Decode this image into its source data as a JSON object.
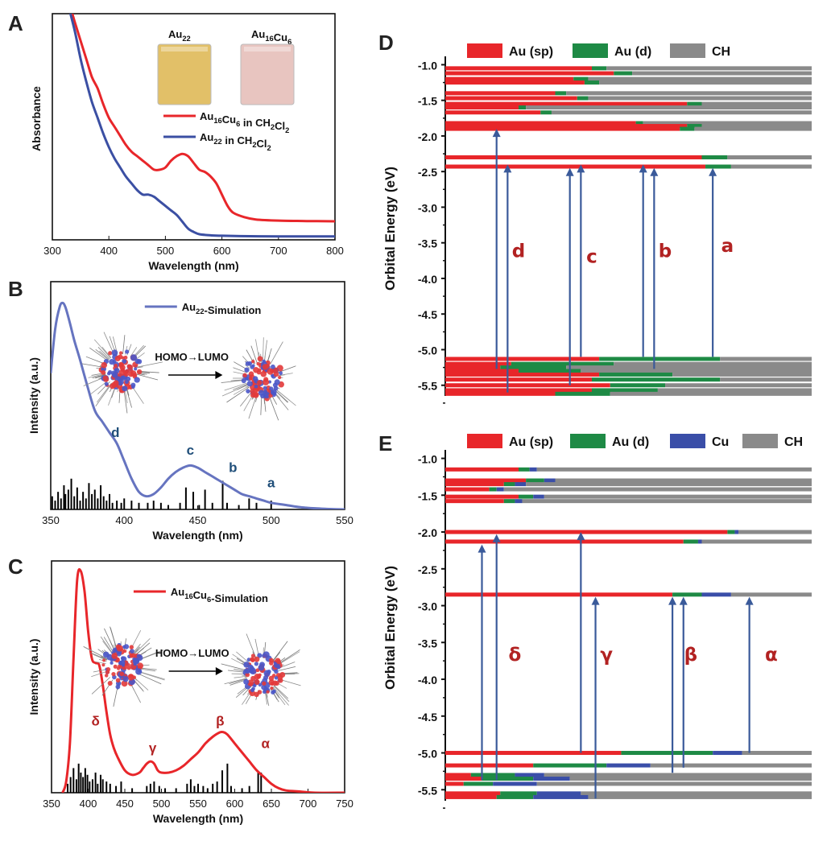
{
  "colors": {
    "red": "#e8262a",
    "blue": "#3b4fa3",
    "sim_blue": "#6674c0",
    "green": "#1e8a45",
    "gray": "#8a8a8a",
    "cu_blue": "#3a4ea8",
    "arrow": "#3a5a9a",
    "label_dark": "#1f4e79",
    "label_red": "#b22222"
  },
  "chart_data": [
    {
      "id": "A",
      "type": "line",
      "panel_label": "A",
      "xlabel": "Wavelength (nm)",
      "ylabel": "Absorbance",
      "xlim": [
        300,
        800
      ],
      "ylim": [
        0,
        1
      ],
      "xticks": [
        300,
        400,
        500,
        600,
        700,
        800
      ],
      "series": [
        {
          "name": "Au16Cu6 in CH2Cl2",
          "legend_main": "Au",
          "legend_sub1": "16",
          "legend_mid": "Cu",
          "legend_sub2": "6",
          "legend_end": " in CH",
          "legend_sub3": "2",
          "legend_tail": "Cl",
          "legend_sub4": "2",
          "color": "#e8262a",
          "x": [
            333,
            340,
            350,
            360,
            370,
            380,
            390,
            400,
            410,
            420,
            430,
            440,
            450,
            460,
            470,
            480,
            490,
            500,
            510,
            520,
            530,
            540,
            550,
            560,
            570,
            580,
            590,
            600,
            610,
            620,
            640,
            660,
            700,
            750,
            800
          ],
          "y": [
            1.02,
            0.96,
            0.88,
            0.8,
            0.72,
            0.67,
            0.6,
            0.54,
            0.5,
            0.46,
            0.42,
            0.39,
            0.37,
            0.35,
            0.33,
            0.31,
            0.31,
            0.32,
            0.35,
            0.37,
            0.38,
            0.37,
            0.34,
            0.31,
            0.3,
            0.28,
            0.25,
            0.2,
            0.15,
            0.12,
            0.1,
            0.09,
            0.085,
            0.083,
            0.082
          ]
        },
        {
          "name": "Au22 in CH2Cl2",
          "legend_main": "Au",
          "legend_sub1": "22",
          "legend_end": " in CH",
          "legend_sub3": "2",
          "legend_tail": "Cl",
          "legend_sub4": "2",
          "color": "#3b4fa3",
          "x": [
            330,
            340,
            350,
            360,
            370,
            380,
            390,
            400,
            410,
            420,
            430,
            440,
            450,
            460,
            470,
            480,
            490,
            500,
            510,
            520,
            530,
            540,
            550,
            560,
            580,
            600,
            650,
            700,
            800
          ],
          "y": [
            1.02,
            0.92,
            0.8,
            0.7,
            0.61,
            0.54,
            0.47,
            0.41,
            0.36,
            0.32,
            0.28,
            0.25,
            0.22,
            0.2,
            0.2,
            0.19,
            0.17,
            0.15,
            0.13,
            0.11,
            0.08,
            0.05,
            0.035,
            0.025,
            0.02,
            0.018,
            0.016,
            0.015,
            0.015
          ]
        }
      ],
      "photos": [
        {
          "label_main": "Au",
          "label_sub": "22",
          "color": "#e2c068"
        },
        {
          "label_main": "Au",
          "label_sub": "16",
          "label_mid": "Cu",
          "label_sub2": "6",
          "color": "#e8c5c0"
        }
      ]
    },
    {
      "id": "B",
      "type": "line",
      "panel_label": "B",
      "xlabel": "Wavelength (nm)",
      "ylabel": "Intensity (a.u.)",
      "xlim": [
        350,
        550
      ],
      "ylim": [
        0,
        1
      ],
      "xticks": [
        350,
        400,
        450,
        500,
        550
      ],
      "series": [
        {
          "name": "Au22-Simulation",
          "legend_main": "Au",
          "legend_sub1": "22",
          "legend_end": "-Simulation",
          "color": "#6674c0",
          "x": [
            350,
            353,
            356,
            358,
            360,
            363,
            366,
            370,
            375,
            380,
            385,
            390,
            395,
            400,
            405,
            410,
            415,
            420,
            425,
            430,
            435,
            440,
            445,
            450,
            455,
            460,
            465,
            470,
            475,
            480,
            485,
            490,
            495,
            500,
            510,
            520,
            530,
            540,
            550
          ],
          "y": [
            0.62,
            0.82,
            0.92,
            0.94,
            0.92,
            0.85,
            0.77,
            0.68,
            0.56,
            0.45,
            0.4,
            0.35,
            0.3,
            0.22,
            0.14,
            0.08,
            0.06,
            0.07,
            0.1,
            0.14,
            0.17,
            0.19,
            0.2,
            0.19,
            0.17,
            0.15,
            0.13,
            0.11,
            0.09,
            0.07,
            0.06,
            0.05,
            0.04,
            0.03,
            0.02,
            0.01,
            0.005,
            0.002,
            0.0
          ]
        }
      ],
      "sticks": {
        "x": [
          351,
          353,
          355,
          357,
          359,
          360,
          362,
          364,
          366,
          368,
          370,
          372,
          374,
          376,
          378,
          380,
          382,
          384,
          386,
          388,
          390,
          392,
          395,
          398,
          400,
          405,
          410,
          416,
          420,
          425,
          430,
          438,
          442,
          447,
          451,
          455,
          460,
          467,
          470,
          478,
          485,
          490,
          500
        ],
        "y": [
          0.06,
          0.04,
          0.08,
          0.05,
          0.11,
          0.07,
          0.09,
          0.14,
          0.06,
          0.1,
          0.04,
          0.08,
          0.05,
          0.12,
          0.07,
          0.09,
          0.05,
          0.11,
          0.06,
          0.04,
          0.07,
          0.03,
          0.04,
          0.03,
          0.05,
          0.04,
          0.03,
          0.03,
          0.04,
          0.03,
          0.02,
          0.03,
          0.1,
          0.08,
          0.02,
          0.09,
          0.03,
          0.13,
          0.03,
          0.02,
          0.05,
          0.03,
          0.04
        ]
      },
      "annotations": [
        {
          "text": "d",
          "x": 394,
          "y": 0.33
        },
        {
          "text": "c",
          "x": 445,
          "y": 0.25
        },
        {
          "text": "b",
          "x": 474,
          "y": 0.17
        },
        {
          "text": "a",
          "x": 500,
          "y": 0.1
        }
      ],
      "inset_text": "HOMO→LUMO"
    },
    {
      "id": "C",
      "type": "line",
      "panel_label": "C",
      "xlabel": "Wavelength (nm)",
      "ylabel": "Intensity (a.u.)",
      "xlim": [
        350,
        750
      ],
      "ylim": [
        0,
        1
      ],
      "xticks": [
        350,
        400,
        450,
        500,
        550,
        600,
        650,
        700,
        750
      ],
      "series": [
        {
          "name": "Au16Cu6-Simulation",
          "legend_main": "Au",
          "legend_sub1": "16",
          "legend_mid": "Cu",
          "legend_sub2": "6",
          "legend_end": "-Simulation",
          "color": "#e8262a",
          "x": [
            365,
            370,
            375,
            380,
            385,
            390,
            395,
            400,
            405,
            410,
            415,
            420,
            425,
            430,
            435,
            440,
            450,
            460,
            470,
            475,
            480,
            485,
            490,
            495,
            500,
            510,
            520,
            530,
            540,
            550,
            560,
            570,
            580,
            585,
            590,
            600,
            610,
            620,
            630,
            640,
            650,
            660,
            670,
            690,
            710,
            750
          ],
          "y": [
            0.0,
            0.05,
            0.22,
            0.6,
            0.95,
            0.99,
            0.9,
            0.72,
            0.6,
            0.58,
            0.57,
            0.48,
            0.36,
            0.26,
            0.2,
            0.16,
            0.1,
            0.08,
            0.09,
            0.11,
            0.13,
            0.14,
            0.13,
            0.1,
            0.09,
            0.09,
            0.1,
            0.12,
            0.15,
            0.18,
            0.22,
            0.25,
            0.27,
            0.27,
            0.26,
            0.22,
            0.18,
            0.14,
            0.1,
            0.07,
            0.04,
            0.02,
            0.01,
            0.005,
            0.0,
            0.0
          ]
        }
      ],
      "sticks": {
        "x": [
          372,
          376,
          380,
          384,
          387,
          390,
          393,
          396,
          399,
          402,
          406,
          410,
          413,
          417,
          420,
          425,
          430,
          438,
          445,
          460,
          480,
          485,
          490,
          497,
          505,
          520,
          535,
          540,
          545,
          550,
          557,
          563,
          570,
          576,
          583,
          590,
          595,
          610,
          620,
          632,
          636
        ],
        "y": [
          0.04,
          0.07,
          0.11,
          0.06,
          0.13,
          0.09,
          0.07,
          0.11,
          0.08,
          0.05,
          0.06,
          0.09,
          0.04,
          0.08,
          0.06,
          0.05,
          0.04,
          0.03,
          0.05,
          0.02,
          0.03,
          0.04,
          0.05,
          0.03,
          0.02,
          0.02,
          0.04,
          0.06,
          0.03,
          0.04,
          0.03,
          0.02,
          0.04,
          0.05,
          0.1,
          0.13,
          0.03,
          0.02,
          0.03,
          0.09,
          0.09
        ]
      },
      "annotations": [
        {
          "text": "δ",
          "x": 410,
          "y": 0.3
        },
        {
          "text": "γ",
          "x": 488,
          "y": 0.18
        },
        {
          "text": "β",
          "x": 580,
          "y": 0.3
        },
        {
          "text": "α",
          "x": 642,
          "y": 0.2
        }
      ],
      "inset_text": "HOMO→LUMO"
    },
    {
      "id": "D",
      "type": "bar",
      "panel_label": "D",
      "ylabel": "Orbital Energy (eV)",
      "ylim": [
        -5.65,
        -0.95
      ],
      "yticks": [
        "-1.0",
        "-1.5",
        "-2.0",
        "-2.5",
        "-3.0",
        "-3.5",
        "-4.0",
        "-4.5",
        "-5.0",
        "-5.5"
      ],
      "legend": [
        "Au (sp)",
        "Au (d)",
        "CH"
      ],
      "levels": [
        {
          "e": -1.05,
          "sp": 0.4,
          "d": 0.04
        },
        {
          "e": -1.12,
          "sp": 0.46,
          "d": 0.05
        },
        {
          "e": -1.2,
          "sp": 0.35,
          "d": 0.04
        },
        {
          "e": -1.25,
          "sp": 0.38,
          "d": 0.04
        },
        {
          "e": -1.4,
          "sp": 0.3,
          "d": 0.03
        },
        {
          "e": -1.47,
          "sp": 0.36,
          "d": 0.03
        },
        {
          "e": -1.55,
          "sp": 0.66,
          "d": 0.04
        },
        {
          "e": -1.6,
          "sp": 0.2,
          "d": 0.02
        },
        {
          "e": -1.67,
          "sp": 0.26,
          "d": 0.03
        },
        {
          "e": -1.82,
          "sp": 0.52,
          "d": 0.02
        },
        {
          "e": -1.86,
          "sp": 0.66,
          "d": 0.04
        },
        {
          "e": -1.9,
          "sp": 0.64,
          "d": 0.04
        },
        {
          "e": -2.3,
          "sp": 0.7,
          "d": 0.07
        },
        {
          "e": -2.43,
          "sp": 0.71,
          "d": 0.07
        },
        {
          "e": -5.13,
          "sp": 0.42,
          "d": 0.33
        },
        {
          "e": -5.2,
          "sp": 0.18,
          "d": 0.28
        },
        {
          "e": -5.25,
          "sp": 0.15,
          "d": 0.18
        },
        {
          "e": -5.3,
          "sp": 0.2,
          "d": 0.17
        },
        {
          "e": -5.35,
          "sp": 0.42,
          "d": 0.2
        },
        {
          "e": -5.42,
          "sp": 0.4,
          "d": 0.35
        },
        {
          "e": -5.5,
          "sp": 0.45,
          "d": 0.15
        },
        {
          "e": -5.57,
          "sp": 0.4,
          "d": 0.18
        },
        {
          "e": -5.62,
          "sp": 0.3,
          "d": 0.15
        }
      ],
      "transitions": [
        {
          "x": 0.14,
          "from": -5.27,
          "to": -1.9
        },
        {
          "x": 0.17,
          "from": -5.6,
          "to": -2.4
        },
        {
          "x": 0.34,
          "from": -5.5,
          "to": -2.45
        },
        {
          "x": 0.37,
          "from": -5.1,
          "to": -2.4
        },
        {
          "x": 0.54,
          "from": -5.1,
          "to": -2.4
        },
        {
          "x": 0.57,
          "from": -5.27,
          "to": -2.45
        },
        {
          "x": 0.73,
          "from": -5.1,
          "to": -2.45
        }
      ],
      "annotations": [
        {
          "text": "d",
          "x": 0.2,
          "e": -3.7
        },
        {
          "text": "c",
          "x": 0.4,
          "e": -3.78
        },
        {
          "text": "b",
          "x": 0.6,
          "e": -3.7
        },
        {
          "text": "a",
          "x": 0.77,
          "e": -3.63
        }
      ]
    },
    {
      "id": "E",
      "type": "bar",
      "panel_label": "E",
      "ylabel": "Orbital Energy (eV)",
      "ylim": [
        -5.65,
        -0.95
      ],
      "yticks": [
        "-1.0",
        "-1.5",
        "-2.0",
        "-2.5",
        "-3.0",
        "-3.5",
        "-4.0",
        "-4.5",
        "-5.0",
        "-5.5"
      ],
      "legend": [
        "Au (sp)",
        "Au (d)",
        "Cu",
        "CH"
      ],
      "levels": [
        {
          "e": -1.15,
          "sp": 0.2,
          "d": 0.03,
          "cu": 0.02
        },
        {
          "e": -1.3,
          "sp": 0.22,
          "d": 0.05,
          "cu": 0.03
        },
        {
          "e": -1.35,
          "sp": 0.16,
          "d": 0.03,
          "cu": 0.03
        },
        {
          "e": -1.42,
          "sp": 0.12,
          "d": 0.02,
          "cu": 0.02
        },
        {
          "e": -1.52,
          "sp": 0.2,
          "d": 0.04,
          "cu": 0.03
        },
        {
          "e": -1.58,
          "sp": 0.16,
          "d": 0.03,
          "cu": 0.02
        },
        {
          "e": -2.0,
          "sp": 0.77,
          "d": 0.02,
          "cu": 0.01
        },
        {
          "e": -2.13,
          "sp": 0.65,
          "d": 0.04,
          "cu": 0.01
        },
        {
          "e": -2.85,
          "sp": 0.62,
          "d": 0.08,
          "cu": 0.08
        },
        {
          "e": -5.0,
          "sp": 0.48,
          "d": 0.25,
          "cu": 0.08
        },
        {
          "e": -5.17,
          "sp": 0.24,
          "d": 0.2,
          "cu": 0.12
        },
        {
          "e": -5.3,
          "sp": 0.07,
          "d": 0.12,
          "cu": 0.08
        },
        {
          "e": -5.35,
          "sp": 0.1,
          "d": 0.14,
          "cu": 0.1
        },
        {
          "e": -5.42,
          "sp": 0.05,
          "d": 0.08,
          "cu": 0.12
        },
        {
          "e": -5.55,
          "sp": 0.15,
          "d": 0.1,
          "cu": 0.12
        },
        {
          "e": -5.6,
          "sp": 0.14,
          "d": 0.1,
          "cu": 0.15
        }
      ],
      "transitions": [
        {
          "x": 0.1,
          "from": -5.37,
          "to": -2.17
        },
        {
          "x": 0.14,
          "from": -5.37,
          "to": -2.03
        },
        {
          "x": 0.37,
          "from": -5.0,
          "to": -2.0
        },
        {
          "x": 0.41,
          "from": -5.62,
          "to": -2.88
        },
        {
          "x": 0.62,
          "from": -5.27,
          "to": -2.88
        },
        {
          "x": 0.65,
          "from": -5.2,
          "to": -2.88
        },
        {
          "x": 0.83,
          "from": -5.0,
          "to": -2.88
        }
      ],
      "annotations": [
        {
          "text": "δ",
          "x": 0.19,
          "e": -3.75
        },
        {
          "text": "γ",
          "x": 0.44,
          "e": -3.75
        },
        {
          "text": "β",
          "x": 0.67,
          "e": -3.75
        },
        {
          "text": "α",
          "x": 0.89,
          "e": -3.75
        }
      ]
    }
  ]
}
